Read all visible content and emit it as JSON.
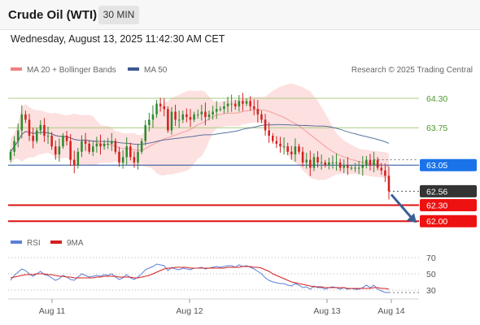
{
  "header": {
    "title": "Crude Oil (WTI)",
    "timeframe": "30 MIN",
    "datetime": "Wednesday, August 13, 2025 11:42:30 AM CET"
  },
  "colors": {
    "bollinger": "#f08080",
    "bollinger_fill": "#fde0e0",
    "ma50": "#3d5a8c",
    "up_candle": "#2e8b2e",
    "down_candle": "#d42020",
    "resistance_line": "#a8cc80",
    "pivot_line": "#1e4f9c",
    "support_line": "#dd1111",
    "pivot_badge": "#1a73e8",
    "support_badge": "#ee1111",
    "price_badge": "#333333",
    "rsi": "#5b7fd6",
    "rsi_ma": "#d42020",
    "arrow": "#3a6096"
  },
  "chart_data": [
    {
      "type": "candlestick",
      "legend": [
        {
          "label": "MA 20 + Bollinger Bands",
          "color": "#f08080"
        },
        {
          "label": "MA 50",
          "color": "#3d5a8c"
        }
      ],
      "credit": "Research © 2025 Trading Central",
      "x_ticks": [
        "Aug 11",
        "Aug 12",
        "Aug 13",
        "Aug 14"
      ],
      "ylim": [
        61.73,
        64.62
      ],
      "levels": [
        {
          "value": 64.3,
          "label": "64.30",
          "role": "resistance"
        },
        {
          "value": 63.75,
          "label": "63.75",
          "role": "resistance"
        },
        {
          "value": 63.05,
          "label": "63.05",
          "role": "pivot"
        },
        {
          "value": 62.56,
          "label": "62.56",
          "role": "last_price"
        },
        {
          "value": 62.3,
          "label": "62.30",
          "role": "support"
        },
        {
          "value": 62.0,
          "label": "62.00",
          "role": "support"
        }
      ],
      "close_series": [
        63.3,
        63.5,
        63.7,
        64.0,
        63.9,
        63.6,
        63.5,
        63.7,
        63.8,
        63.6,
        63.6,
        63.4,
        63.25,
        63.4,
        63.6,
        63.5,
        63.15,
        63.05,
        63.3,
        63.5,
        63.45,
        63.3,
        63.4,
        63.45,
        63.4,
        63.45,
        63.45,
        63.5,
        63.3,
        63.1,
        63.2,
        63.4,
        63.2,
        63.1,
        63.3,
        63.5,
        63.8,
        63.9,
        64.0,
        64.2,
        64.15,
        64.1,
        63.7,
        64.05,
        63.9,
        63.9,
        64.0,
        63.95,
        63.9,
        64.0,
        64.0,
        64.05,
        63.95,
        64.0,
        64.05,
        64.1,
        64.1,
        64.15,
        64.2,
        64.2,
        64.15,
        64.25,
        64.2,
        64.25,
        64.15,
        64.1,
        64.0,
        63.9,
        63.7,
        63.6,
        63.5,
        63.45,
        63.4,
        63.4,
        63.3,
        63.25,
        63.4,
        63.3,
        63.1,
        63.15,
        63.0,
        63.2,
        63.1,
        63.1,
        63.05,
        63.1,
        63.1,
        63.1,
        63.0,
        63.05,
        63.0,
        63.0,
        63.0,
        63.0,
        63.05,
        63.15,
        63.05,
        63.15,
        63.0,
        62.95,
        62.85,
        62.56
      ]
    },
    {
      "type": "line",
      "legend": [
        {
          "label": "RSI",
          "color": "#5b7fd6"
        },
        {
          "label": "9MA",
          "color": "#d42020"
        }
      ],
      "ylim": [
        22,
        75
      ],
      "y_ticks": [
        70,
        50,
        30
      ],
      "rsi": [
        42,
        48,
        52,
        56,
        54,
        50,
        47,
        50,
        53,
        49,
        48,
        45,
        42,
        44,
        48,
        46,
        43,
        42,
        46,
        50,
        48,
        46,
        47,
        48,
        47,
        49,
        48,
        50,
        46,
        43,
        45,
        49,
        45,
        43,
        46,
        50,
        55,
        57,
        59,
        62,
        61,
        60,
        54,
        58,
        56,
        55,
        57,
        56,
        55,
        57,
        57,
        58,
        56,
        57,
        58,
        59,
        58,
        59,
        60,
        60,
        58,
        61,
        59,
        60,
        58,
        56,
        53,
        50,
        45,
        42,
        40,
        39,
        38,
        38,
        36,
        35,
        38,
        36,
        33,
        34,
        31,
        35,
        33,
        33,
        31,
        33,
        34,
        33,
        31,
        33,
        31,
        32,
        31,
        31,
        33,
        36,
        33,
        36,
        31,
        29,
        27,
        27
      ],
      "rsi_ma": [
        45,
        46,
        47,
        48,
        49,
        49,
        49,
        50,
        50,
        50,
        49,
        49,
        48,
        47,
        47,
        46,
        46,
        45,
        45,
        45,
        45,
        45,
        45,
        46,
        46,
        47,
        47,
        47,
        47,
        46,
        46,
        46,
        46,
        45,
        45,
        46,
        47,
        48,
        50,
        52,
        54,
        56,
        57,
        57,
        58,
        58,
        58,
        58,
        57,
        57,
        57,
        57,
        57,
        57,
        57,
        57,
        57,
        57,
        58,
        58,
        58,
        58,
        59,
        59,
        59,
        58,
        58,
        57,
        55,
        53,
        50,
        48,
        46,
        44,
        42,
        40,
        39,
        38,
        37,
        36,
        35,
        34,
        34,
        34,
        33,
        33,
        33,
        33,
        33,
        33,
        32,
        32,
        32,
        32,
        32,
        32,
        32,
        33,
        33,
        32,
        32,
        31
      ]
    }
  ]
}
